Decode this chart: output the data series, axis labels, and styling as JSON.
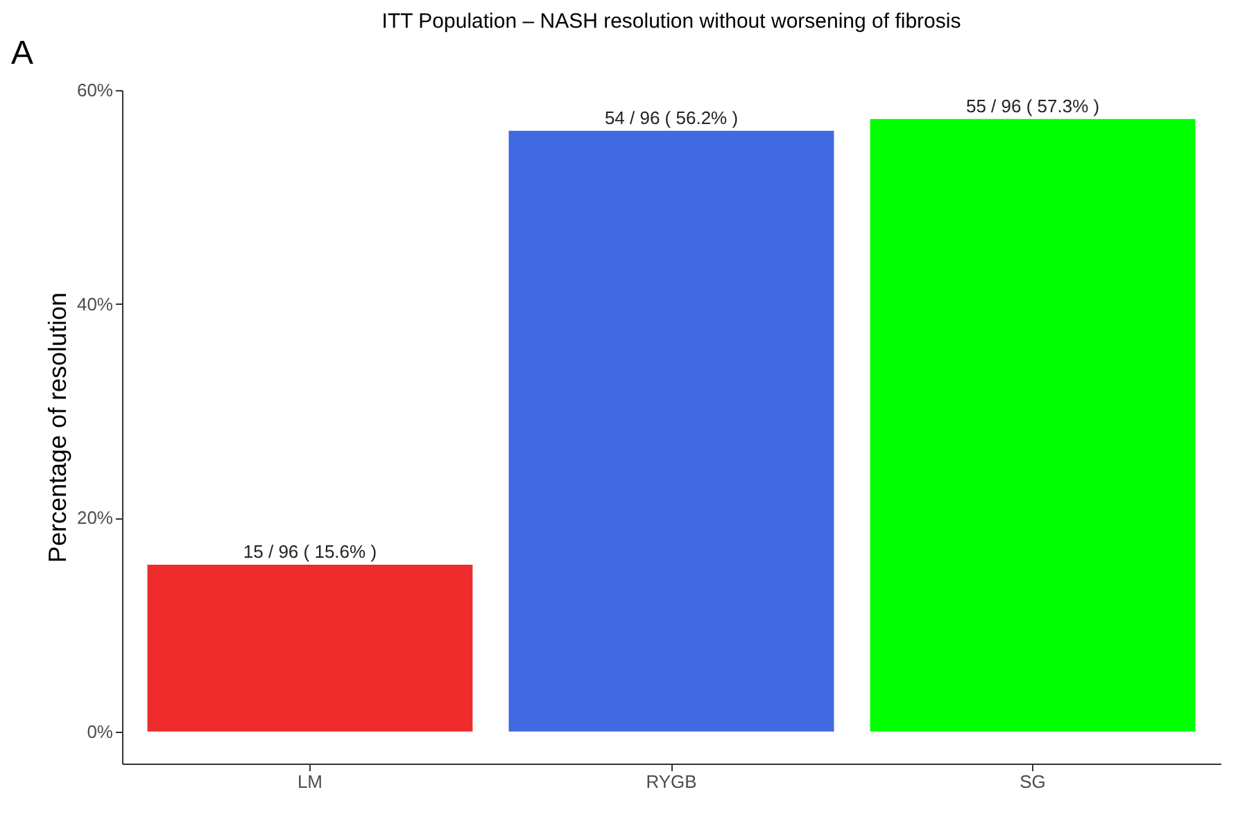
{
  "chart_data": {
    "type": "bar",
    "title": "ITT Population – NASH resolution without worsening of fibrosis",
    "ylabel": "Percentage of resolution",
    "categories": [
      "LM",
      "RYGB",
      "SG"
    ],
    "values": [
      15.6,
      56.2,
      57.3
    ],
    "colors": [
      "#ee2c2c",
      "#4169e1",
      "#00ff00"
    ],
    "value_labels": [
      "15 / 96 ( 15.6% )",
      "54 / 96 ( 56.2% )",
      "55 / 96 ( 57.3% )"
    ],
    "ylim": [
      -3,
      60
    ],
    "yticks": [
      {
        "value": 0,
        "label": "0%"
      },
      {
        "value": 20,
        "label": "20%"
      },
      {
        "value": 40,
        "label": "40%"
      },
      {
        "value": 60,
        "label": "60%"
      }
    ],
    "annotations": [
      "A"
    ]
  }
}
